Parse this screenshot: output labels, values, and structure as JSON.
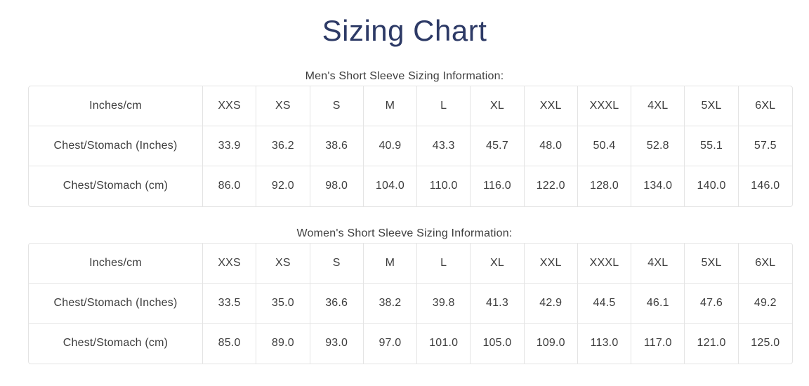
{
  "colors": {
    "title": "#2d3a66",
    "text": "#3d3d3d",
    "border": "#e4e4e4"
  },
  "page": {
    "title": "Sizing Chart"
  },
  "tables": [
    {
      "caption": "Men's Short Sleeve Sizing Information:",
      "headers": [
        "Inches/cm",
        "XXS",
        "XS",
        "S",
        "M",
        "L",
        "XL",
        "XXL",
        "XXXL",
        "4XL",
        "5XL",
        "6XL"
      ],
      "rows": [
        {
          "label": "Chest/Stomach (Inches)",
          "values": [
            "33.9",
            "36.2",
            "38.6",
            "40.9",
            "43.3",
            "45.7",
            "48.0",
            "50.4",
            "52.8",
            "55.1",
            "57.5"
          ]
        },
        {
          "label": "Chest/Stomach (cm)",
          "values": [
            "86.0",
            "92.0",
            "98.0",
            "104.0",
            "110.0",
            "116.0",
            "122.0",
            "128.0",
            "134.0",
            "140.0",
            "146.0"
          ]
        }
      ]
    },
    {
      "caption": "Women's Short Sleeve Sizing Information:",
      "headers": [
        "Inches/cm",
        "XXS",
        "XS",
        "S",
        "M",
        "L",
        "XL",
        "XXL",
        "XXXL",
        "4XL",
        "5XL",
        "6XL"
      ],
      "rows": [
        {
          "label": "Chest/Stomach (Inches)",
          "values": [
            "33.5",
            "35.0",
            "36.6",
            "38.2",
            "39.8",
            "41.3",
            "42.9",
            "44.5",
            "46.1",
            "47.6",
            "49.2"
          ]
        },
        {
          "label": "Chest/Stomach (cm)",
          "values": [
            "85.0",
            "89.0",
            "93.0",
            "97.0",
            "101.0",
            "105.0",
            "109.0",
            "113.0",
            "117.0",
            "121.0",
            "125.0"
          ]
        }
      ]
    }
  ]
}
